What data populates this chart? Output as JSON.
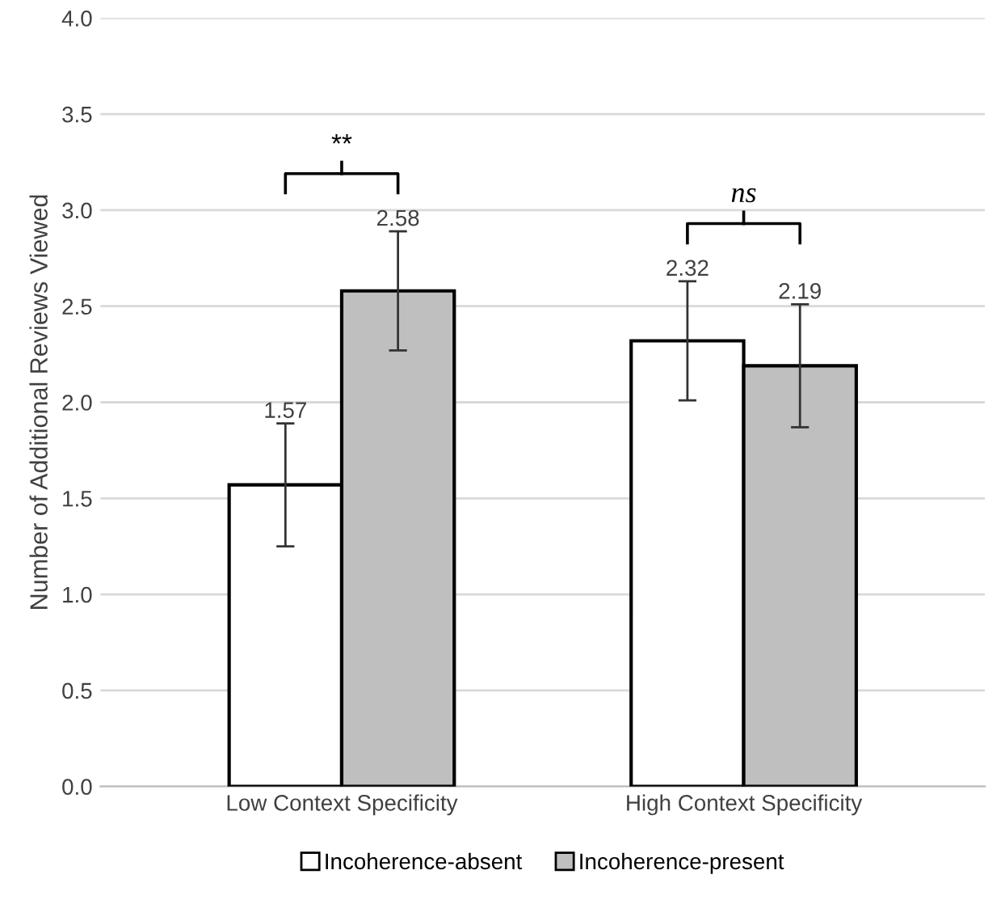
{
  "chart_data": {
    "type": "bar",
    "ylabel": "Number of Additional Reviews Viewed",
    "categories": [
      "Low Context Specificity",
      "High Context Specificity"
    ],
    "series": [
      {
        "name": "Incoherence-absent",
        "color": "#ffffff",
        "values": [
          1.57,
          2.32
        ],
        "errors": [
          0.32,
          0.31
        ]
      },
      {
        "name": "Incoherence-present",
        "color": "#bfbfbf",
        "values": [
          2.58,
          2.19
        ],
        "errors": [
          0.31,
          0.32
        ]
      }
    ],
    "ylim": [
      0,
      4
    ],
    "yticks": [
      {
        "value": 0,
        "label": "0.0"
      },
      {
        "value": 0.5,
        "label": "0.5"
      },
      {
        "value": 1,
        "label": "1.0"
      },
      {
        "value": 1.5,
        "label": "1.5"
      },
      {
        "value": 2,
        "label": "2.0"
      },
      {
        "value": 2.5,
        "label": "2.5"
      },
      {
        "value": 3,
        "label": "3.0"
      },
      {
        "value": 3.5,
        "label": "3.5"
      },
      {
        "value": 4,
        "label": "4.0"
      }
    ],
    "grid": "y",
    "legend": "bottom",
    "data_labels": true,
    "annotations": [
      "**",
      "ns"
    ]
  }
}
